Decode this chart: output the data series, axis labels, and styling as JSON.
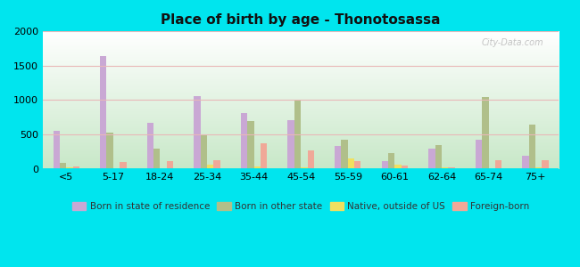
{
  "title": "Place of birth by age - Thonotosassa",
  "categories": [
    "<5",
    "5-17",
    "18-24",
    "25-34",
    "35-44",
    "45-54",
    "55-59",
    "60-61",
    "62-64",
    "65-74",
    "75+"
  ],
  "series": {
    "Born in state of residence": [
      550,
      1640,
      670,
      1060,
      810,
      710,
      330,
      110,
      290,
      420,
      195
    ],
    "Born in other state": [
      85,
      525,
      295,
      505,
      690,
      990,
      420,
      235,
      340,
      1040,
      645
    ],
    "Native, outside of US": [
      20,
      0,
      0,
      55,
      40,
      20,
      155,
      55,
      20,
      0,
      25
    ],
    "Foreign-born": [
      35,
      100,
      115,
      120,
      370,
      265,
      115,
      50,
      25,
      130,
      120
    ]
  },
  "colors": {
    "Born in state of residence": "#c9a8d4",
    "Born in other state": "#b0bf8a",
    "Native, outside of US": "#f0e060",
    "Foreign-born": "#f0a898"
  },
  "ylim": [
    0,
    2000
  ],
  "yticks": [
    0,
    500,
    1000,
    1500,
    2000
  ],
  "bg_top": "#ffffff",
  "bg_bottom": "#c8e8c8",
  "outer_background": "#00e5ee",
  "watermark": "City-Data.com",
  "grid_color": "#e8b8b8"
}
